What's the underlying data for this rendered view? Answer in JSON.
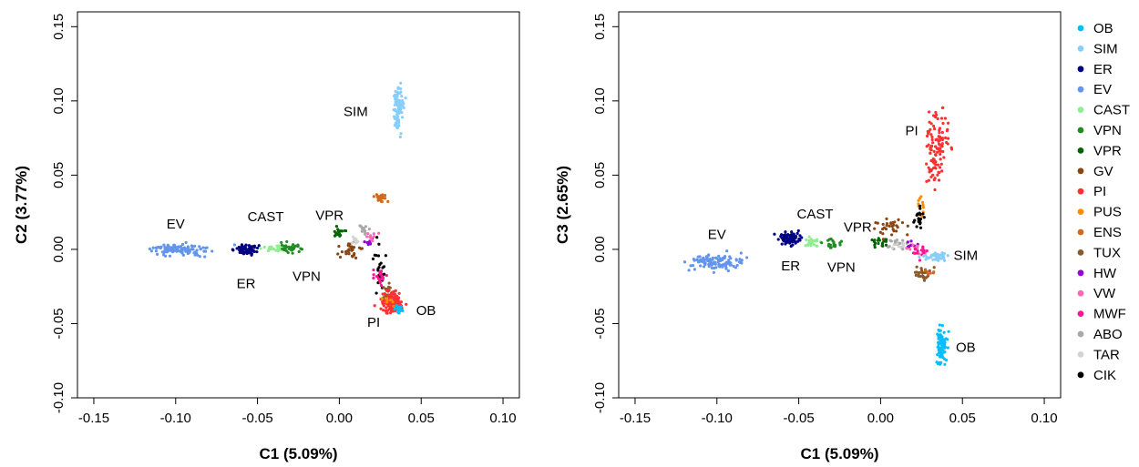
{
  "chart_data": [
    {
      "type": "scatter",
      "xlabel": "C1 (5.09%)",
      "ylabel": "C2 (3.77%)",
      "xlim": [
        -0.16,
        0.11
      ],
      "ylim": [
        -0.1,
        0.16
      ],
      "xticks": [
        "-0.15",
        "-0.10",
        "-0.05",
        "0.00",
        "0.05",
        "0.10"
      ],
      "xtick_values": [
        -0.15,
        -0.1,
        -0.05,
        0.0,
        0.05,
        0.1
      ],
      "yticks": [
        "-0.10",
        "-0.05",
        "0.00",
        "0.05",
        "0.10",
        "0.15"
      ],
      "ytick_values": [
        -0.1,
        -0.05,
        0.0,
        0.05,
        0.1,
        0.15
      ],
      "series": [
        {
          "name": "SIM",
          "color": "#87CEFA",
          "cx": 0.036,
          "cy": 0.095,
          "sx": 0.0015,
          "sy": 0.008,
          "n": 90
        },
        {
          "name": "EV",
          "color": "#6495ED",
          "cx": -0.098,
          "cy": 0.0,
          "sx": 0.01,
          "sy": 0.0018,
          "n": 110
        },
        {
          "name": "ER",
          "color": "#000080",
          "cx": -0.057,
          "cy": 0.0,
          "sx": 0.0035,
          "sy": 0.0016,
          "n": 70
        },
        {
          "name": "CAST",
          "color": "#90EE90",
          "cx": -0.04,
          "cy": 0.0005,
          "sx": 0.0035,
          "sy": 0.0012,
          "n": 25
        },
        {
          "name": "VPN",
          "color": "#228B22",
          "cx": -0.03,
          "cy": 0.001,
          "sx": 0.003,
          "sy": 0.0015,
          "n": 30
        },
        {
          "name": "VPR",
          "color": "#006400",
          "cx": -0.001,
          "cy": 0.011,
          "sx": 0.0025,
          "sy": 0.0018,
          "n": 20
        },
        {
          "name": "GV",
          "color": "#8B4513",
          "cx": 0.006,
          "cy": 0.0,
          "sx": 0.004,
          "sy": 0.003,
          "n": 30
        },
        {
          "name": "ABO",
          "color": "#A9A9A9",
          "cx": 0.015,
          "cy": 0.014,
          "sx": 0.002,
          "sy": 0.0015,
          "n": 15
        },
        {
          "name": "TAR",
          "color": "#D3D3D3",
          "cx": 0.011,
          "cy": 0.006,
          "sx": 0.002,
          "sy": 0.0015,
          "n": 12
        },
        {
          "name": "HW",
          "color": "#9400D3",
          "cx": 0.018,
          "cy": 0.006,
          "sx": 0.002,
          "sy": 0.0015,
          "n": 8
        },
        {
          "name": "VW",
          "color": "#FF69B4",
          "cx": 0.02,
          "cy": 0.009,
          "sx": 0.002,
          "sy": 0.002,
          "n": 12
        },
        {
          "name": "ENS",
          "color": "#D2691E",
          "cx": 0.025,
          "cy": 0.035,
          "sx": 0.002,
          "sy": 0.0018,
          "n": 20
        },
        {
          "name": "CIK",
          "color": "#000000",
          "cx": 0.025,
          "cy": -0.01,
          "sx": 0.002,
          "sy": 0.009,
          "n": 25
        },
        {
          "name": "MWF",
          "color": "#FF1493",
          "cx": 0.025,
          "cy": -0.018,
          "sx": 0.002,
          "sy": 0.003,
          "n": 20
        },
        {
          "name": "TUX",
          "color": "#8B5A2B",
          "cx": 0.029,
          "cy": -0.028,
          "sx": 0.002,
          "sy": 0.003,
          "n": 15
        },
        {
          "name": "PI",
          "color": "#FF3030",
          "cx": 0.032,
          "cy": -0.036,
          "sx": 0.0035,
          "sy": 0.004,
          "n": 110
        },
        {
          "name": "PUS",
          "color": "#FF8C00",
          "cx": 0.03,
          "cy": -0.035,
          "sx": 0.002,
          "sy": 0.002,
          "n": 8
        },
        {
          "name": "OB",
          "color": "#00BFFF",
          "cx": 0.037,
          "cy": -0.04,
          "sx": 0.0015,
          "sy": 0.002,
          "n": 12
        }
      ],
      "annotations": [
        {
          "text": "SIM",
          "x": 0.01,
          "y": 0.093
        },
        {
          "text": "EV",
          "x": -0.1,
          "y": 0.017
        },
        {
          "text": "CAST",
          "x": -0.045,
          "y": 0.022
        },
        {
          "text": "VPR",
          "x": -0.006,
          "y": 0.023
        },
        {
          "text": "ER",
          "x": -0.057,
          "y": -0.023
        },
        {
          "text": "VPN",
          "x": -0.02,
          "y": -0.018
        },
        {
          "text": "PI",
          "x": 0.021,
          "y": -0.049
        },
        {
          "text": "OB",
          "x": 0.053,
          "y": -0.041
        }
      ]
    },
    {
      "type": "scatter",
      "xlabel": "C1 (5.09%)",
      "ylabel": "C3 (2.65%)",
      "xlim": [
        -0.16,
        0.11
      ],
      "ylim": [
        -0.1,
        0.16
      ],
      "xticks": [
        "-0.15",
        "-0.10",
        "-0.05",
        "0.00",
        "0.05",
        "0.10"
      ],
      "xtick_values": [
        -0.15,
        -0.1,
        -0.05,
        0.0,
        0.05,
        0.1
      ],
      "yticks": [
        "-0.10",
        "-0.05",
        "0.00",
        "0.05",
        "0.10",
        "0.15"
      ],
      "ytick_values": [
        -0.1,
        -0.05,
        0.0,
        0.05,
        0.1,
        0.15
      ],
      "series": [
        {
          "name": "PI",
          "color": "#FF3030",
          "cx": 0.034,
          "cy": 0.07,
          "sx": 0.0035,
          "sy": 0.012,
          "n": 110
        },
        {
          "name": "EV",
          "color": "#6495ED",
          "cx": -0.1,
          "cy": -0.009,
          "sx": 0.009,
          "sy": 0.003,
          "n": 110
        },
        {
          "name": "ER",
          "color": "#000080",
          "cx": -0.055,
          "cy": 0.007,
          "sx": 0.0035,
          "sy": 0.0018,
          "n": 70
        },
        {
          "name": "CAST",
          "color": "#90EE90",
          "cx": -0.042,
          "cy": 0.005,
          "sx": 0.003,
          "sy": 0.0015,
          "n": 25
        },
        {
          "name": "VPN",
          "color": "#228B22",
          "cx": -0.03,
          "cy": 0.004,
          "sx": 0.003,
          "sy": 0.0015,
          "n": 25
        },
        {
          "name": "VPR",
          "color": "#006400",
          "cx": 0.0,
          "cy": 0.005,
          "sx": 0.0025,
          "sy": 0.0015,
          "n": 20
        },
        {
          "name": "GV",
          "color": "#8B4513",
          "cx": 0.006,
          "cy": 0.015,
          "sx": 0.004,
          "sy": 0.003,
          "n": 30
        },
        {
          "name": "ABO",
          "color": "#A9A9A9",
          "cx": 0.01,
          "cy": 0.004,
          "sx": 0.003,
          "sy": 0.002,
          "n": 20
        },
        {
          "name": "TAR",
          "color": "#D3D3D3",
          "cx": 0.014,
          "cy": 0.002,
          "sx": 0.003,
          "sy": 0.0015,
          "n": 15
        },
        {
          "name": "HW",
          "color": "#9400D3",
          "cx": 0.018,
          "cy": 0.003,
          "sx": 0.002,
          "sy": 0.0015,
          "n": 8
        },
        {
          "name": "VW",
          "color": "#FF69B4",
          "cx": 0.021,
          "cy": 0.0,
          "sx": 0.002,
          "sy": 0.0015,
          "n": 10
        },
        {
          "name": "MWF",
          "color": "#FF1493",
          "cx": 0.024,
          "cy": -0.002,
          "sx": 0.002,
          "sy": 0.0015,
          "n": 15
        },
        {
          "name": "PUS",
          "color": "#FF8C00",
          "cx": 0.025,
          "cy": 0.03,
          "sx": 0.0015,
          "sy": 0.004,
          "n": 10
        },
        {
          "name": "CIK",
          "color": "#000000",
          "cx": 0.024,
          "cy": 0.02,
          "sx": 0.0015,
          "sy": 0.005,
          "n": 20
        },
        {
          "name": "SIM",
          "color": "#87CEFA",
          "cx": 0.034,
          "cy": -0.005,
          "sx": 0.0035,
          "sy": 0.0015,
          "n": 40
        },
        {
          "name": "TUX",
          "color": "#8B5A2B",
          "cx": 0.026,
          "cy": -0.017,
          "sx": 0.0025,
          "sy": 0.0025,
          "n": 25
        },
        {
          "name": "ENS",
          "color": "#D2691E",
          "cx": 0.03,
          "cy": -0.016,
          "sx": 0.0015,
          "sy": 0.0015,
          "n": 6
        },
        {
          "name": "OB",
          "color": "#00BFFF",
          "cx": 0.037,
          "cy": -0.065,
          "sx": 0.0015,
          "sy": 0.006,
          "n": 90
        }
      ],
      "annotations": [
        {
          "text": "PI",
          "x": 0.019,
          "y": 0.08
        },
        {
          "text": "EV",
          "x": -0.1,
          "y": 0.01
        },
        {
          "text": "CAST",
          "x": -0.04,
          "y": 0.024
        },
        {
          "text": "VPR",
          "x": -0.014,
          "y": 0.015
        },
        {
          "text": "ER",
          "x": -0.055,
          "y": -0.011
        },
        {
          "text": "VPN",
          "x": -0.024,
          "y": -0.012
        },
        {
          "text": "SIM",
          "x": 0.052,
          "y": -0.004
        },
        {
          "text": "OB",
          "x": 0.052,
          "y": -0.066
        }
      ]
    }
  ],
  "legend": {
    "placement": "right",
    "items": [
      {
        "label": "OB",
        "color": "#00BFFF"
      },
      {
        "label": "SIM",
        "color": "#87CEFA"
      },
      {
        "label": "ER",
        "color": "#000080"
      },
      {
        "label": "EV",
        "color": "#6495ED"
      },
      {
        "label": "CAST",
        "color": "#90EE90"
      },
      {
        "label": "VPN",
        "color": "#228B22"
      },
      {
        "label": "VPR",
        "color": "#006400"
      },
      {
        "label": "GV",
        "color": "#8B4513"
      },
      {
        "label": "PI",
        "color": "#FF3030"
      },
      {
        "label": "PUS",
        "color": "#FF8C00"
      },
      {
        "label": "ENS",
        "color": "#D2691E"
      },
      {
        "label": "TUX",
        "color": "#8B5A2B"
      },
      {
        "label": "HW",
        "color": "#9400D3"
      },
      {
        "label": "VW",
        "color": "#FF69B4"
      },
      {
        "label": "MWF",
        "color": "#FF1493"
      },
      {
        "label": "ABO",
        "color": "#A9A9A9"
      },
      {
        "label": "TAR",
        "color": "#D3D3D3"
      },
      {
        "label": "CIK",
        "color": "#000000"
      }
    ]
  }
}
